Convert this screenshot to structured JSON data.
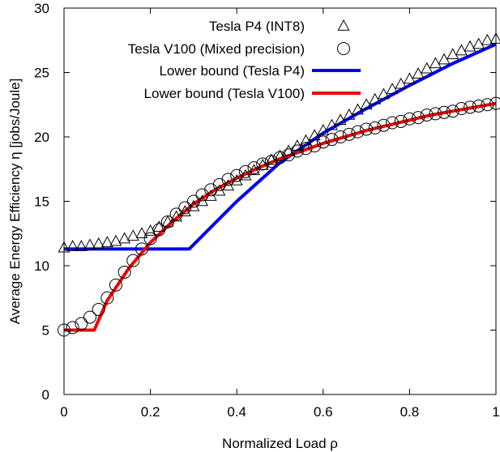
{
  "chart_data": {
    "type": "line",
    "title": "",
    "xlabel": "Normalized Load ρ",
    "ylabel": "Average Energy Efficiency η [jobs/Joule]",
    "xlim": [
      0,
      1
    ],
    "ylim": [
      0,
      30
    ],
    "x_ticks": [
      0,
      0.2,
      0.4,
      0.6,
      0.8,
      1
    ],
    "x_tick_labels": [
      "0",
      "0.2",
      "0.4",
      "0.6",
      "0.8",
      "1"
    ],
    "y_ticks": [
      0,
      5,
      10,
      15,
      20,
      25,
      30
    ],
    "y_tick_labels": [
      "0",
      "5",
      "10",
      "15",
      "20",
      "25",
      "30"
    ],
    "grid": false,
    "legend_position": "top-right",
    "series": [
      {
        "name": "Tesla P4 (INT8)",
        "kind": "marker",
        "marker": "triangle",
        "color": "#000000",
        "x": [
          0,
          0.02,
          0.04,
          0.06,
          0.08,
          0.1,
          0.12,
          0.14,
          0.16,
          0.18,
          0.2,
          0.22,
          0.24,
          0.26,
          0.28,
          0.3,
          0.32,
          0.34,
          0.36,
          0.38,
          0.4,
          0.42,
          0.44,
          0.46,
          0.48,
          0.5,
          0.52,
          0.54,
          0.56,
          0.58,
          0.6,
          0.62,
          0.64,
          0.66,
          0.68,
          0.7,
          0.72,
          0.74,
          0.76,
          0.78,
          0.8,
          0.82,
          0.84,
          0.86,
          0.88,
          0.9,
          0.92,
          0.94,
          0.96,
          0.98,
          1.0
        ],
        "y": [
          11.4,
          11.5,
          11.5,
          11.6,
          11.7,
          11.8,
          11.9,
          12.1,
          12.3,
          12.5,
          12.7,
          13.0,
          13.4,
          13.8,
          14.2,
          14.6,
          15.0,
          15.4,
          15.8,
          16.2,
          16.6,
          17.0,
          17.4,
          17.8,
          18.2,
          18.5,
          18.9,
          19.3,
          19.7,
          20.1,
          20.5,
          20.9,
          21.3,
          21.7,
          22.1,
          22.5,
          22.9,
          23.3,
          23.7,
          24.1,
          24.5,
          24.9,
          25.3,
          25.7,
          26.0,
          26.4,
          26.7,
          27.0,
          27.2,
          27.5,
          27.6
        ]
      },
      {
        "name": "Tesla V100 (Mixed precision)",
        "kind": "marker",
        "marker": "circle",
        "color": "#000000",
        "x": [
          0,
          0.02,
          0.04,
          0.06,
          0.08,
          0.1,
          0.12,
          0.14,
          0.16,
          0.18,
          0.2,
          0.22,
          0.24,
          0.26,
          0.28,
          0.3,
          0.32,
          0.34,
          0.36,
          0.38,
          0.4,
          0.42,
          0.44,
          0.46,
          0.48,
          0.5,
          0.52,
          0.54,
          0.56,
          0.58,
          0.6,
          0.62,
          0.64,
          0.66,
          0.68,
          0.7,
          0.72,
          0.74,
          0.76,
          0.78,
          0.8,
          0.82,
          0.84,
          0.86,
          0.88,
          0.9,
          0.92,
          0.94,
          0.96,
          0.98,
          1.0
        ],
        "y": [
          5.0,
          5.2,
          5.5,
          6.0,
          6.6,
          7.5,
          8.5,
          9.5,
          10.4,
          11.3,
          12.1,
          12.8,
          13.4,
          14.0,
          14.5,
          15.0,
          15.5,
          15.9,
          16.3,
          16.7,
          17.0,
          17.3,
          17.6,
          17.9,
          18.1,
          18.4,
          18.6,
          18.9,
          19.1,
          19.3,
          19.6,
          19.8,
          20.0,
          20.2,
          20.4,
          20.6,
          20.7,
          20.9,
          21.1,
          21.2,
          21.4,
          21.5,
          21.7,
          21.8,
          21.9,
          22.0,
          22.2,
          22.3,
          22.4,
          22.5,
          22.6
        ]
      },
      {
        "name": "Lower bound (Tesla P4)",
        "kind": "line",
        "color": "#0000ee",
        "x": [
          0,
          0.29,
          0.4,
          0.5,
          0.6,
          0.7,
          0.8,
          0.9,
          1.0
        ],
        "y": [
          11.3,
          11.3,
          15.0,
          18.0,
          20.3,
          22.2,
          24.0,
          25.7,
          27.2
        ]
      },
      {
        "name": "Lower bound (Tesla V100)",
        "kind": "line",
        "color": "#ee0000",
        "x": [
          0,
          0.07,
          0.1,
          0.15,
          0.2,
          0.25,
          0.3,
          0.35,
          0.4,
          0.45,
          0.5,
          0.55,
          0.6,
          0.65,
          0.7,
          0.75,
          0.8,
          0.85,
          0.9,
          0.95,
          1.0
        ],
        "y": [
          5.0,
          5.0,
          7.3,
          9.8,
          11.8,
          13.4,
          14.8,
          15.9,
          16.8,
          17.6,
          18.3,
          18.9,
          19.5,
          20.0,
          20.5,
          20.9,
          21.3,
          21.7,
          22.0,
          22.3,
          22.6
        ]
      }
    ]
  }
}
